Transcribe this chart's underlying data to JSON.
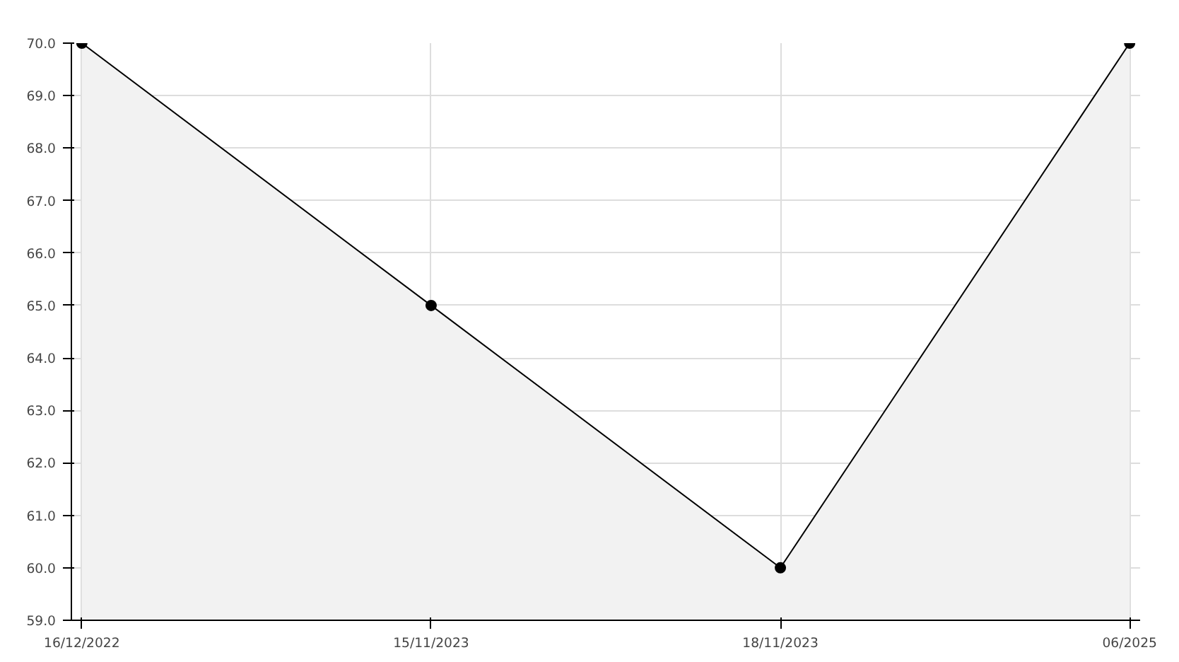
{
  "chart_data": {
    "type": "area",
    "categories": [
      "16/12/2022",
      "15/11/2023",
      "18/11/2023",
      "06/2025"
    ],
    "series": [
      {
        "color": "#000000",
        "values": [
          70,
          65,
          60,
          70
        ]
      }
    ],
    "ylim": [
      59,
      70
    ],
    "yticks": [
      {
        "value": 59,
        "label": "59.0"
      },
      {
        "value": 60,
        "label": "60.0"
      },
      {
        "value": 61,
        "label": "61.0"
      },
      {
        "value": 62,
        "label": "62.0"
      },
      {
        "value": 63,
        "label": "63.0"
      },
      {
        "value": 64,
        "label": "64.0"
      },
      {
        "value": 65,
        "label": "65.0"
      },
      {
        "value": 66,
        "label": "66.0"
      },
      {
        "value": 67,
        "label": "67.0"
      },
      {
        "value": 68,
        "label": "68.0"
      },
      {
        "value": 69,
        "label": "69.0"
      },
      {
        "value": 70,
        "label": "70.0"
      }
    ],
    "grid": true,
    "marker": "circle",
    "line_style": "solid"
  }
}
